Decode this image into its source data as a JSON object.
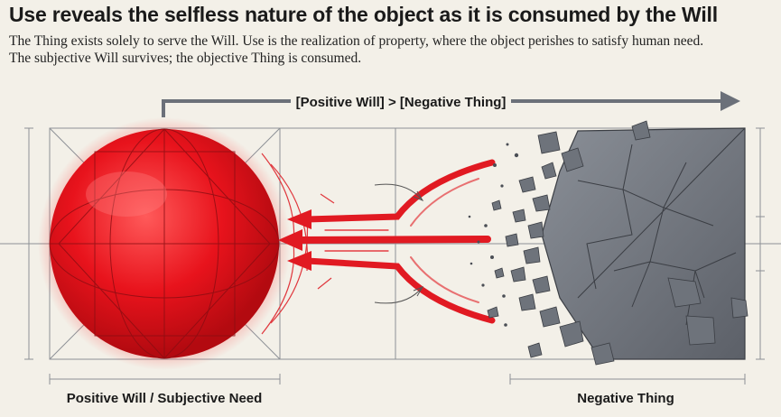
{
  "header": {
    "title": "Use reveals the selfless nature of the object as it is consumed by the Will",
    "subtitle_line1": "The Thing exists solely to serve the Will. Use is the realization of property, where the object perishes to satisfy human need.",
    "subtitle_line2": "The subjective Will survives; the objective Thing is consumed."
  },
  "diagram": {
    "top_arrow_label": "[Positive Will] > [Negative Thing]",
    "left_label": "Positive Will / Subjective Need",
    "right_label": "Negative Thing",
    "colors": {
      "will_red": "#e11a22",
      "thing_gray": "#6b7079",
      "line_gray": "#7a7d82",
      "background": "#f3f0e8"
    }
  }
}
